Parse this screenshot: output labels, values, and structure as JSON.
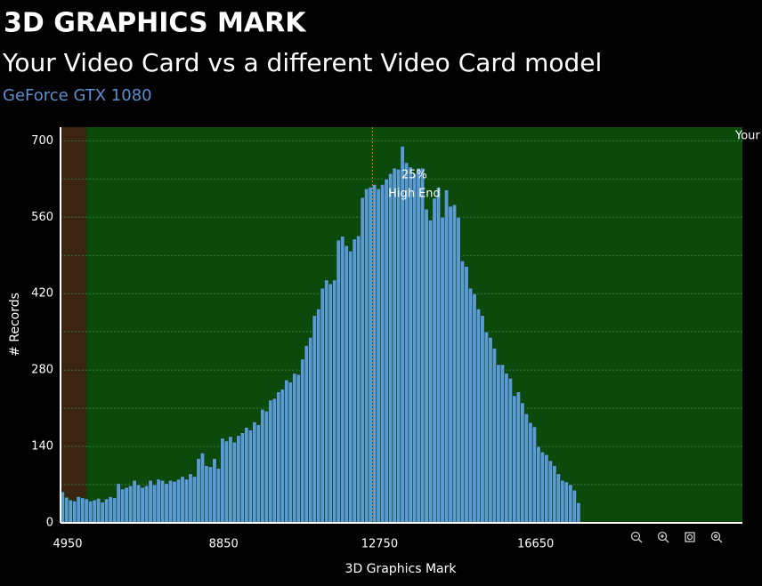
{
  "header": {
    "title": "3D GRAPHICS MARK",
    "subtitle": "Your Video Card vs a different Video Card model",
    "card": "GeForce GTX 1080"
  },
  "chart_data": {
    "type": "histogram",
    "xlabel": "3D Graphics Mark",
    "ylabel": "# Records",
    "bins": [
      4950,
      5050,
      5150,
      5250,
      5350,
      5450,
      5550,
      5650,
      5750,
      5850,
      5950,
      6050,
      6150,
      6250,
      6350,
      6450,
      6550,
      6650,
      6750,
      6850,
      6950,
      7050,
      7150,
      7250,
      7350,
      7450,
      7550,
      7650,
      7750,
      7850,
      7950,
      8050,
      8150,
      8250,
      8350,
      8450,
      8550,
      8650,
      8750,
      8850,
      8950,
      9050,
      9150,
      9250,
      9350,
      9450,
      9550,
      9650,
      9750,
      9850,
      9950,
      10050,
      10150,
      10250,
      10350,
      10450,
      10550,
      10650,
      10750,
      10850,
      10950,
      11050,
      11150,
      11250,
      11350,
      11450,
      11550,
      11650,
      11750,
      11850,
      11950,
      12050,
      12150,
      12250,
      12350,
      12450,
      12550,
      12650,
      12750,
      12850,
      12950,
      13050,
      13150,
      13250,
      13350,
      13450,
      13550,
      13650,
      13750,
      13850,
      13950,
      14050,
      14150,
      14250,
      14350,
      14450,
      14550,
      14650,
      14750,
      14850,
      14950,
      15050,
      15150,
      15250,
      15350,
      15450,
      15550,
      15650,
      15750,
      15850,
      15950,
      16050,
      16150,
      16250,
      16350,
      16450,
      16550,
      16650,
      16750,
      16850,
      16950,
      17050,
      17150,
      17250,
      17350,
      17450,
      17550,
      17650,
      17750,
      17850,
      17950
    ],
    "values": [
      57,
      47,
      42,
      40,
      48,
      46,
      44,
      40,
      42,
      45,
      38,
      44,
      48,
      46,
      72,
      62,
      65,
      68,
      78,
      70,
      65,
      68,
      78,
      70,
      80,
      78,
      72,
      78,
      76,
      80,
      85,
      80,
      90,
      85,
      118,
      128,
      105,
      103,
      118,
      100,
      155,
      150,
      158,
      148,
      160,
      165,
      175,
      170,
      185,
      180,
      208,
      205,
      225,
      228,
      240,
      245,
      262,
      258,
      274,
      272,
      300,
      325,
      340,
      380,
      392,
      430,
      445,
      438,
      445,
      518,
      525,
      508,
      498,
      520,
      526,
      596,
      612,
      615,
      620,
      612,
      620,
      630,
      640,
      650,
      648,
      690,
      660,
      652,
      640,
      650,
      650,
      575,
      555,
      595,
      615,
      560,
      610,
      580,
      583,
      560,
      480,
      470,
      430,
      420,
      392,
      380,
      350,
      340,
      320,
      290,
      290,
      274,
      265,
      233,
      240,
      220,
      200,
      184,
      176,
      140,
      130,
      125,
      114,
      105,
      90,
      78,
      75,
      70,
      60,
      37
    ],
    "color": "#5b9bd5",
    "xlim": [
      4950,
      22000
    ],
    "xticks": [
      4950,
      8850,
      12750,
      16650
    ],
    "ylim": [
      0,
      725
    ],
    "yticks": [
      0,
      140,
      280,
      420,
      560,
      700
    ],
    "grid": true,
    "regions": [
      {
        "from": 4950,
        "to": 5600,
        "color": "#3b2412"
      },
      {
        "from": 5600,
        "to": 22000,
        "color": "#0b4a0b"
      }
    ],
    "marker": {
      "x": 12750,
      "lines": [
        "25%",
        "High End"
      ]
    },
    "corner_note": "Your"
  }
}
